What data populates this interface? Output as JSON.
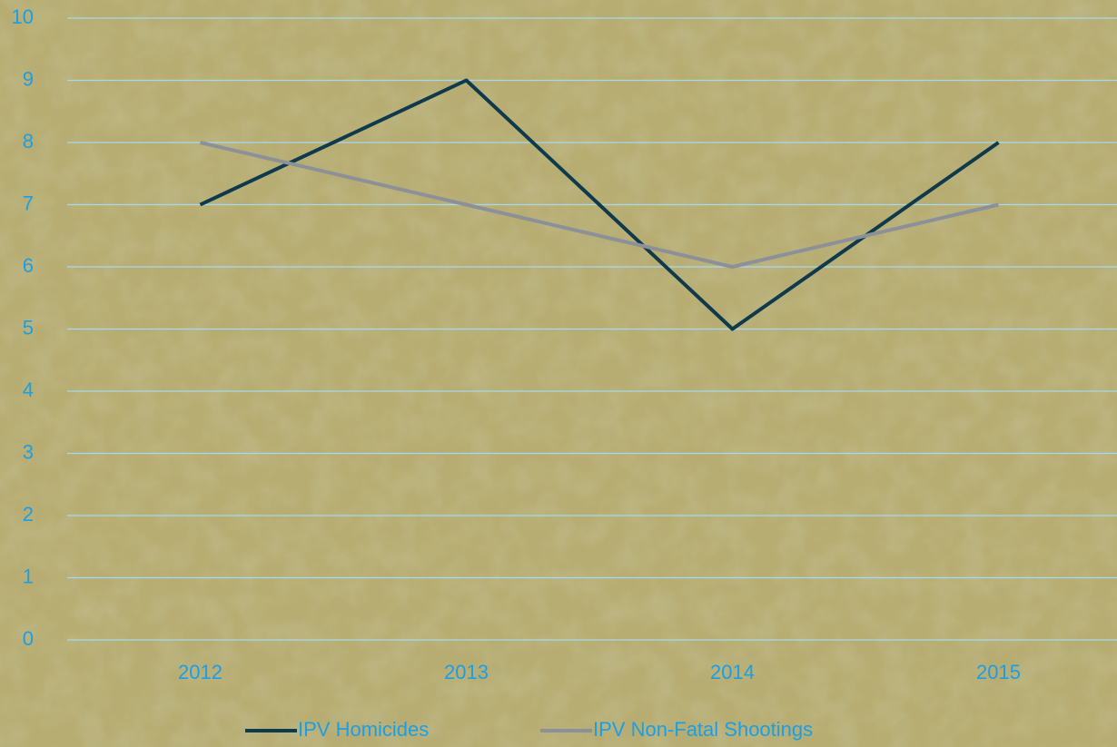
{
  "chart_data": {
    "type": "line",
    "categories": [
      "2012",
      "2013",
      "2014",
      "2015"
    ],
    "series": [
      {
        "name": "IPV Homicides",
        "color": "#0e3a4c",
        "values": [
          7,
          9,
          5,
          8
        ]
      },
      {
        "name": "IPV Non-Fatal Shootings",
        "color": "#8c9099",
        "values": [
          8,
          7,
          6,
          7
        ]
      }
    ],
    "ylim": [
      0,
      10
    ],
    "yticks": [
      0,
      1,
      2,
      3,
      4,
      5,
      6,
      7,
      8,
      9,
      10
    ],
    "grid": true,
    "legend": "bottom"
  }
}
